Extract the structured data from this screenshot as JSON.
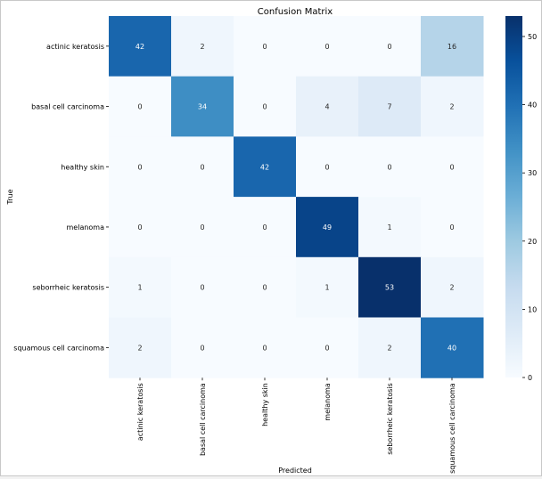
{
  "chart_data": {
    "type": "heatmap",
    "title": "Confusion Matrix",
    "xlabel": "Predicted",
    "ylabel": "True",
    "row_labels": [
      "actinic keratosis",
      "basal cell carcinoma",
      "healthy skin",
      "melanoma",
      "seborrheic keratosis",
      "squamous cell carcinoma"
    ],
    "col_labels": [
      "actinic keratosis",
      "basal cell carcinoma",
      "healthy skin",
      "melanoma",
      "seborrheic keratosis",
      "squamous cell carcinoma"
    ],
    "matrix": [
      [
        42,
        2,
        0,
        0,
        0,
        16
      ],
      [
        0,
        34,
        0,
        4,
        7,
        2
      ],
      [
        0,
        0,
        42,
        0,
        0,
        0
      ],
      [
        0,
        0,
        0,
        49,
        1,
        0
      ],
      [
        1,
        0,
        0,
        1,
        53,
        2
      ],
      [
        2,
        0,
        0,
        0,
        2,
        40
      ]
    ],
    "colorbar": {
      "colormap": "Blues",
      "range": [
        0,
        53
      ],
      "ticks": [
        0,
        10,
        20,
        30,
        40,
        50
      ]
    }
  }
}
